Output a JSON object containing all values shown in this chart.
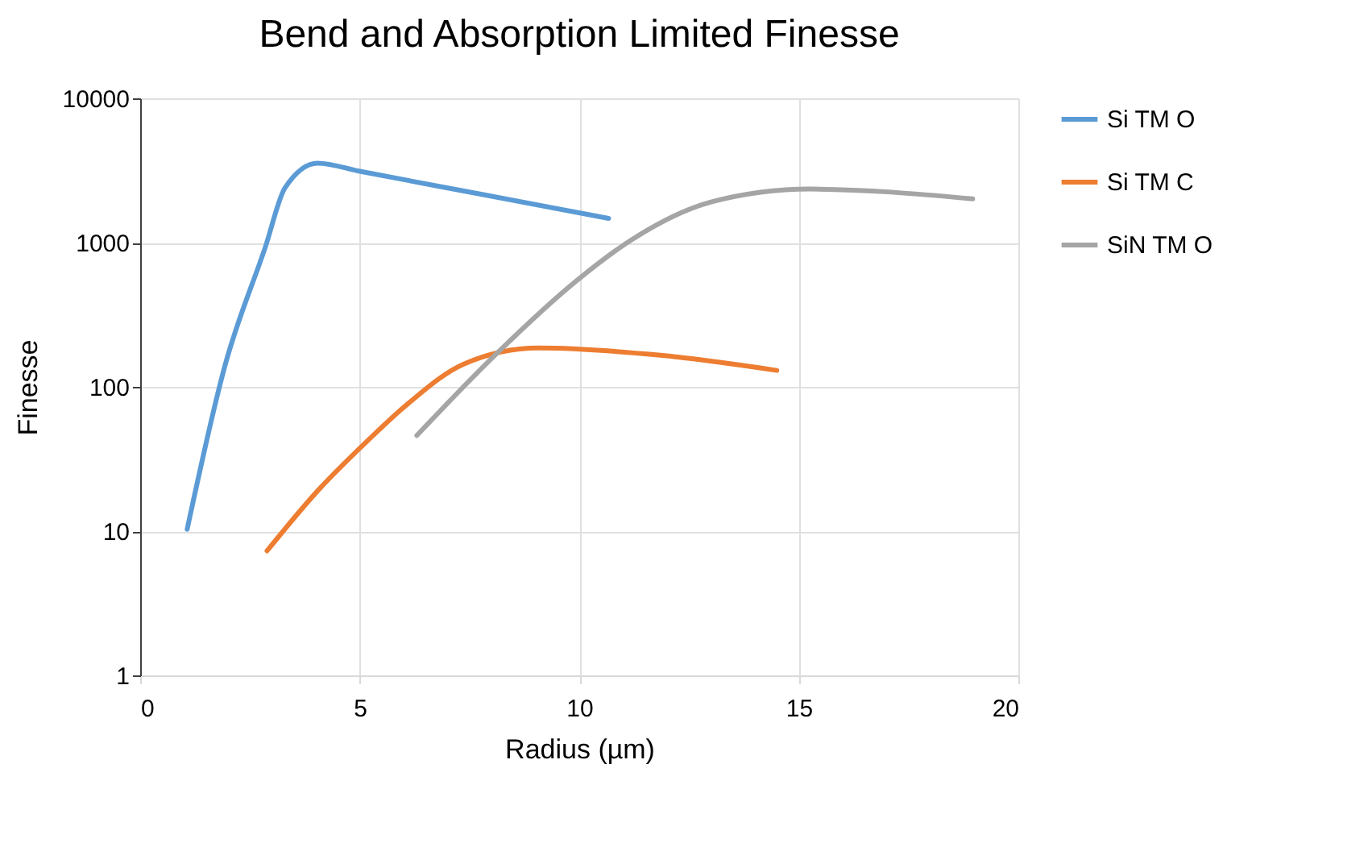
{
  "chart_data": {
    "type": "line",
    "title": "Bend and Absorption Limited Finesse",
    "xlabel": "Radius (µm)",
    "ylabel": "Finesse",
    "log": "y",
    "grid": true,
    "legend": "right",
    "xlim": [
      0,
      20
    ],
    "xticks": [
      0,
      5,
      10,
      15,
      20
    ],
    "ylim": [
      1,
      10000
    ],
    "yticks": [
      1,
      10,
      100,
      1000,
      10000
    ],
    "series": [
      {
        "name": "Si TM O",
        "color": "#5b9bd5",
        "x": [
          1.07,
          1.93,
          2.85,
          3.3,
          4.04,
          5,
          7.74,
          10.67
        ],
        "values": [
          10.3,
          140,
          930,
          2400,
          3550,
          3120,
          2170,
          1470
        ]
      },
      {
        "name": "Si TM C",
        "color": "#ed7d31",
        "x": [
          2.89,
          4.04,
          5.15,
          6.11,
          7.37,
          9.07,
          11.8,
          14.5
        ],
        "values": [
          7.3,
          19,
          41.5,
          77,
          144,
          186,
          166,
          130
        ]
      },
      {
        "name": "SiN TM O",
        "color": "#a5a5a5",
        "x": [
          6.3,
          8.1,
          9.96,
          11.2,
          13.0,
          15.26,
          18.96
        ],
        "values": [
          46,
          168,
          551,
          1050,
          1910,
          2350,
          2010
        ]
      }
    ]
  }
}
